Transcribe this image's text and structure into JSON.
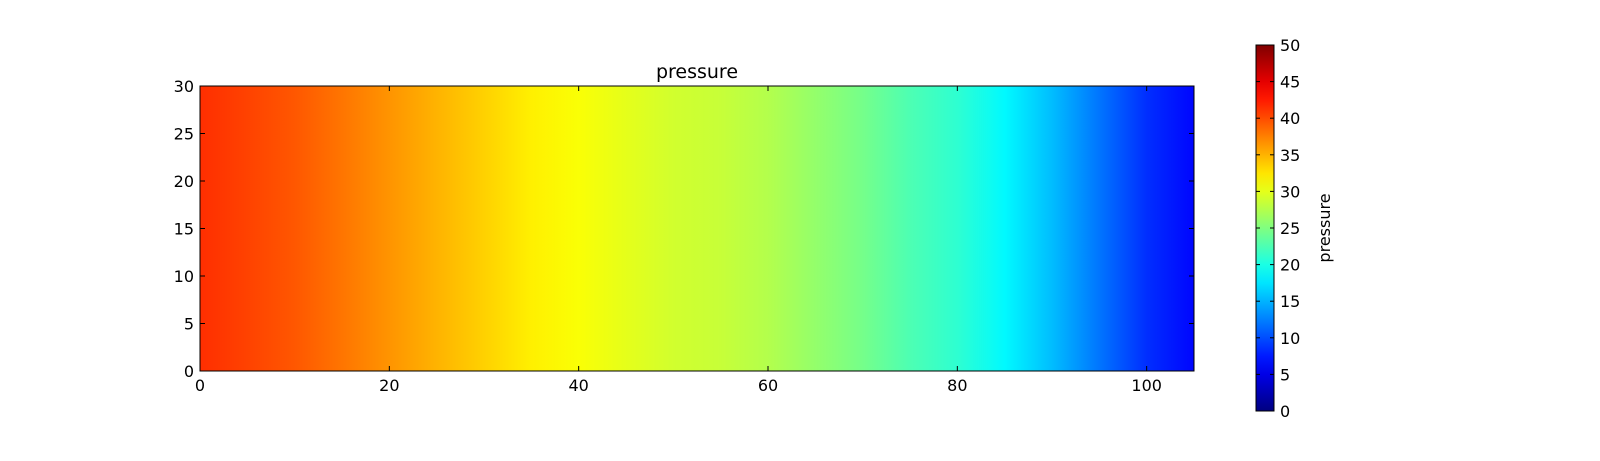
{
  "chart_data": {
    "type": "heatmap",
    "title": "pressure",
    "xlabel": "",
    "ylabel": "",
    "xlim": [
      0,
      105
    ],
    "ylim": [
      0,
      30
    ],
    "x_ticks": [
      0,
      20,
      40,
      60,
      80,
      100
    ],
    "y_ticks": [
      0,
      5,
      10,
      15,
      20,
      25,
      30
    ],
    "grid": false,
    "colormap": "jet",
    "colorbar": {
      "label": "pressure",
      "range": [
        0,
        50
      ],
      "ticks": [
        0,
        5,
        10,
        15,
        20,
        25,
        30,
        35,
        40,
        45,
        50
      ]
    },
    "value_profile": {
      "description_axis": "x",
      "x": [
        0,
        5,
        10,
        15,
        20,
        25,
        30,
        35,
        40,
        45,
        50,
        55,
        60,
        65,
        70,
        75,
        80,
        85,
        90,
        95,
        100,
        105
      ],
      "values": [
        41.5,
        40.5,
        39.5,
        38.0,
        36.5,
        35.0,
        33.5,
        32.0,
        31.0,
        30.0,
        29.0,
        28.5,
        27.5,
        26.0,
        24.5,
        22.5,
        21.0,
        18.5,
        15.5,
        12.0,
        8.5,
        6.5
      ]
    }
  }
}
